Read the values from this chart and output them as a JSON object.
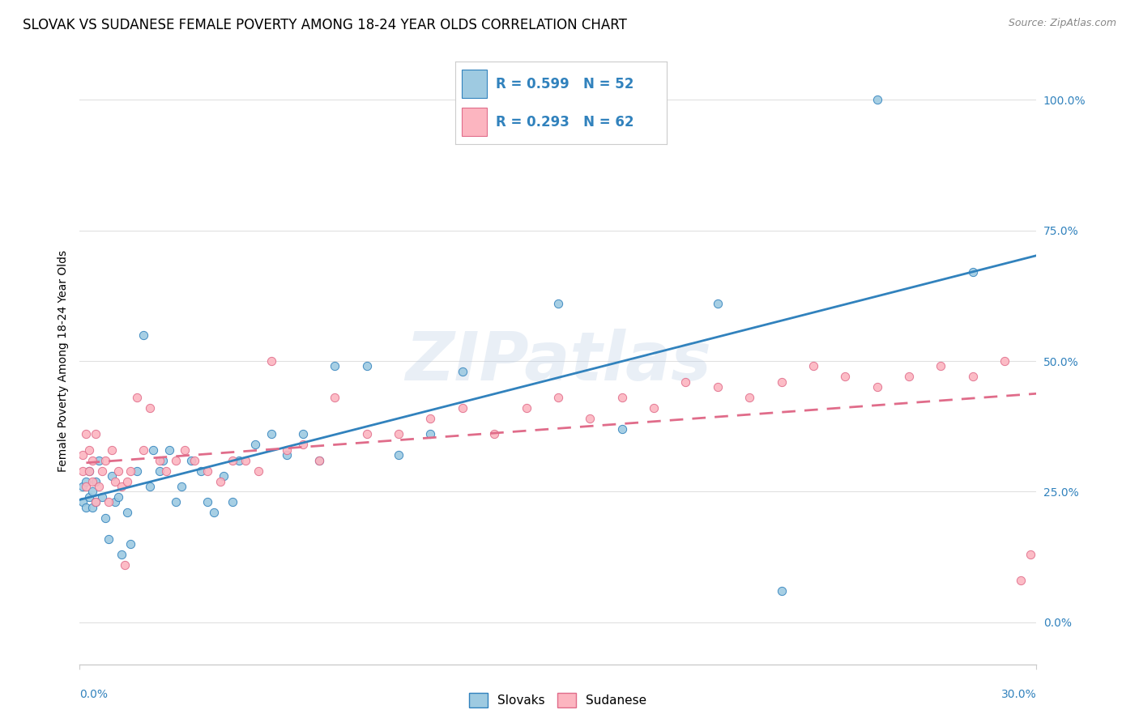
{
  "title": "SLOVAK VS SUDANESE FEMALE POVERTY AMONG 18-24 YEAR OLDS CORRELATION CHART",
  "source": "Source: ZipAtlas.com",
  "ylabel": "Female Poverty Among 18-24 Year Olds",
  "xlim": [
    0.0,
    0.3
  ],
  "ylim": [
    -0.08,
    1.08
  ],
  "yticks": [
    0.0,
    0.25,
    0.5,
    0.75,
    1.0
  ],
  "ytick_labels": [
    "0.0%",
    "25.0%",
    "50.0%",
    "75.0%",
    "100.0%"
  ],
  "xtick_left": "0.0%",
  "xtick_right": "30.0%",
  "watermark": "ZIPatlas",
  "color_slovak": "#9ecae1",
  "color_sudanese": "#fcb5c0",
  "color_trendline_slovak": "#3182bd",
  "color_trendline_sudanese": "#e06c8a",
  "color_ytick": "#3182bd",
  "color_xtick": "#3182bd",
  "background_color": "#ffffff",
  "grid_color": "#e0e0e0",
  "title_fontsize": 12,
  "source_fontsize": 9,
  "axis_label_fontsize": 10,
  "tick_fontsize": 10,
  "legend_r_slovak": "R = 0.599",
  "legend_n_slovak": "N = 52",
  "legend_r_sudanese": "R = 0.293",
  "legend_n_sudanese": "N = 62",
  "slovak_x": [
    0.001,
    0.001,
    0.002,
    0.002,
    0.003,
    0.003,
    0.004,
    0.004,
    0.005,
    0.005,
    0.006,
    0.007,
    0.008,
    0.009,
    0.01,
    0.011,
    0.012,
    0.013,
    0.015,
    0.016,
    0.018,
    0.02,
    0.022,
    0.023,
    0.025,
    0.026,
    0.028,
    0.03,
    0.032,
    0.035,
    0.038,
    0.04,
    0.042,
    0.045,
    0.048,
    0.05,
    0.055,
    0.06,
    0.065,
    0.07,
    0.075,
    0.08,
    0.09,
    0.1,
    0.11,
    0.12,
    0.15,
    0.17,
    0.2,
    0.22,
    0.25,
    0.28
  ],
  "slovak_y": [
    0.23,
    0.26,
    0.22,
    0.27,
    0.24,
    0.29,
    0.25,
    0.22,
    0.27,
    0.23,
    0.31,
    0.24,
    0.2,
    0.16,
    0.28,
    0.23,
    0.24,
    0.13,
    0.21,
    0.15,
    0.29,
    0.55,
    0.26,
    0.33,
    0.29,
    0.31,
    0.33,
    0.23,
    0.26,
    0.31,
    0.29,
    0.23,
    0.21,
    0.28,
    0.23,
    0.31,
    0.34,
    0.36,
    0.32,
    0.36,
    0.31,
    0.49,
    0.49,
    0.32,
    0.36,
    0.48,
    0.61,
    0.37,
    0.61,
    0.06,
    1.0,
    0.67
  ],
  "sudanese_x": [
    0.001,
    0.001,
    0.002,
    0.002,
    0.003,
    0.003,
    0.004,
    0.004,
    0.005,
    0.005,
    0.006,
    0.007,
    0.008,
    0.009,
    0.01,
    0.011,
    0.012,
    0.013,
    0.014,
    0.015,
    0.016,
    0.018,
    0.02,
    0.022,
    0.025,
    0.027,
    0.03,
    0.033,
    0.036,
    0.04,
    0.044,
    0.048,
    0.052,
    0.056,
    0.06,
    0.065,
    0.07,
    0.075,
    0.08,
    0.09,
    0.1,
    0.11,
    0.12,
    0.13,
    0.14,
    0.15,
    0.16,
    0.17,
    0.18,
    0.19,
    0.2,
    0.21,
    0.22,
    0.23,
    0.24,
    0.25,
    0.26,
    0.27,
    0.28,
    0.29,
    0.295,
    0.298
  ],
  "sudanese_y": [
    0.29,
    0.32,
    0.26,
    0.36,
    0.29,
    0.33,
    0.27,
    0.31,
    0.23,
    0.36,
    0.26,
    0.29,
    0.31,
    0.23,
    0.33,
    0.27,
    0.29,
    0.26,
    0.11,
    0.27,
    0.29,
    0.43,
    0.33,
    0.41,
    0.31,
    0.29,
    0.31,
    0.33,
    0.31,
    0.29,
    0.27,
    0.31,
    0.31,
    0.29,
    0.5,
    0.33,
    0.34,
    0.31,
    0.43,
    0.36,
    0.36,
    0.39,
    0.41,
    0.36,
    0.41,
    0.43,
    0.39,
    0.43,
    0.41,
    0.46,
    0.45,
    0.43,
    0.46,
    0.49,
    0.47,
    0.45,
    0.47,
    0.49,
    0.47,
    0.5,
    0.08,
    0.13
  ]
}
